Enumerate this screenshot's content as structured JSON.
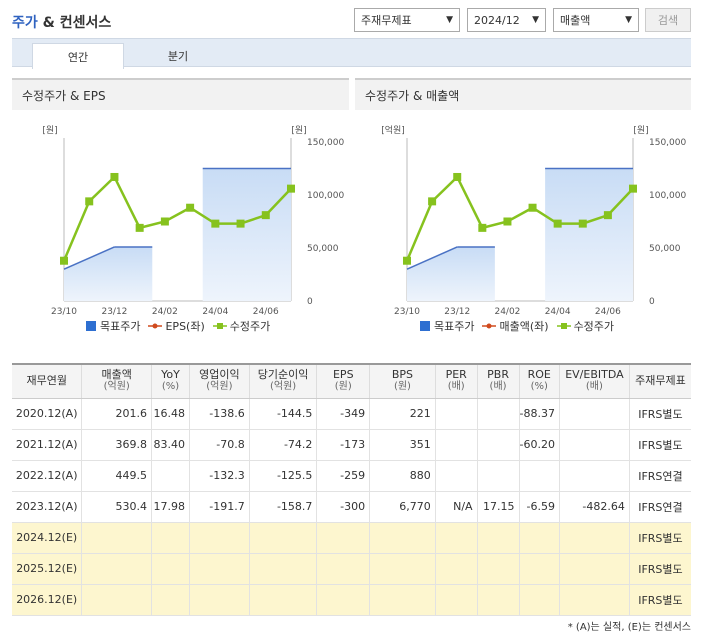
{
  "header": {
    "title_part1": "주가",
    "title_part2": "& 컨센서스"
  },
  "selectors": {
    "report_type": "주재무제표",
    "period": "2024/12",
    "metric": "매출액",
    "search_label": "검색"
  },
  "tabs": [
    {
      "label": "연간"
    },
    {
      "label": "분기"
    }
  ],
  "charts": [
    {
      "title": "수정주가 & EPS",
      "left_unit": "[원]",
      "right_unit": "[원]",
      "legend": [
        "목표주가",
        "EPS(좌)",
        "수정주가"
      ]
    },
    {
      "title": "수정주가 & 매출액",
      "left_unit": "[억원]",
      "right_unit": "[원]",
      "legend": [
        "목표주가",
        "매출액(좌)",
        "수정주가"
      ]
    }
  ],
  "chart_data": [
    {
      "type": "line",
      "title": "수정주가 & EPS",
      "x": [
        "23/10",
        "23/11",
        "23/12",
        "24/01",
        "24/02",
        "24/03",
        "24/04",
        "24/05",
        "24/06",
        "24/07"
      ],
      "x_tick_labels": [
        "23/10",
        "23/12",
        "24/02",
        "24/04",
        "24/06"
      ],
      "y_right_ticks": [
        "150,000",
        "100,000",
        "50,000",
        "0"
      ],
      "y_right_range": [
        0,
        150000
      ],
      "series": [
        {
          "name": "수정주가",
          "color": "#86c21e",
          "values": [
            38000,
            94000,
            117000,
            69000,
            75000,
            88000,
            73000,
            73000,
            81000,
            106000
          ]
        },
        {
          "name": "목표주가",
          "color": "#2e6fd1",
          "values": [
            30000,
            null,
            51000,
            51000,
            null,
            125000,
            null,
            null,
            null,
            125000
          ],
          "segments": [
            [
              0,
              30000,
              2,
              51000
            ],
            [
              2,
              51000,
              3.5,
              51000
            ],
            [
              5.5,
              125000,
              9,
              125000
            ]
          ]
        }
      ]
    },
    {
      "type": "line",
      "title": "수정주가 & 매출액",
      "x": [
        "23/10",
        "23/11",
        "23/12",
        "24/01",
        "24/02",
        "24/03",
        "24/04",
        "24/05",
        "24/06",
        "24/07"
      ],
      "x_tick_labels": [
        "23/10",
        "23/12",
        "24/02",
        "24/04",
        "24/06"
      ],
      "y_right_ticks": [
        "150,000",
        "100,000",
        "50,000",
        "0"
      ],
      "y_right_range": [
        0,
        150000
      ],
      "series": [
        {
          "name": "수정주가",
          "color": "#86c21e",
          "values": [
            38000,
            94000,
            117000,
            69000,
            75000,
            88000,
            73000,
            73000,
            81000,
            106000
          ]
        },
        {
          "name": "목표주가",
          "color": "#2e6fd1",
          "values": [
            30000,
            null,
            51000,
            51000,
            null,
            125000,
            null,
            null,
            null,
            125000
          ],
          "segments": [
            [
              0,
              30000,
              2,
              51000
            ],
            [
              2,
              51000,
              3.5,
              51000
            ],
            [
              5.5,
              125000,
              9,
              125000
            ]
          ]
        }
      ]
    }
  ],
  "table": {
    "headers": [
      {
        "main": "재무연월",
        "sub": ""
      },
      {
        "main": "매출액",
        "sub": "(억원)"
      },
      {
        "main": "YoY",
        "sub": "(%)"
      },
      {
        "main": "영업이익",
        "sub": "(억원)"
      },
      {
        "main": "당기순이익",
        "sub": "(억원)"
      },
      {
        "main": "EPS",
        "sub": "(원)"
      },
      {
        "main": "BPS",
        "sub": "(원)"
      },
      {
        "main": "PER",
        "sub": "(배)"
      },
      {
        "main": "PBR",
        "sub": "(배)"
      },
      {
        "main": "ROE",
        "sub": "(%)"
      },
      {
        "main": "EV/EBITDA",
        "sub": "(배)"
      },
      {
        "main": "주재무제표",
        "sub": ""
      }
    ],
    "rows": [
      [
        "2020.12(A)",
        "201.6",
        "16.48",
        "-138.6",
        "-144.5",
        "-349",
        "221",
        "",
        "",
        "-88.37",
        "",
        "IFRS별도"
      ],
      [
        "2021.12(A)",
        "369.8",
        "83.40",
        "-70.8",
        "-74.2",
        "-173",
        "351",
        "",
        "",
        "-60.20",
        "",
        "IFRS별도"
      ],
      [
        "2022.12(A)",
        "449.5",
        "",
        "-132.3",
        "-125.5",
        "-259",
        "880",
        "",
        "",
        "",
        "",
        "IFRS연결"
      ],
      [
        "2023.12(A)",
        "530.4",
        "17.98",
        "-191.7",
        "-158.7",
        "-300",
        "6,770",
        "N/A",
        "17.15",
        "-6.59",
        "-482.64",
        "IFRS연결"
      ],
      [
        "2024.12(E)",
        "",
        "",
        "",
        "",
        "",
        "",
        "",
        "",
        "",
        "",
        "IFRS별도"
      ],
      [
        "2025.12(E)",
        "",
        "",
        "",
        "",
        "",
        "",
        "",
        "",
        "",
        "",
        "IFRS별도"
      ],
      [
        "2026.12(E)",
        "",
        "",
        "",
        "",
        "",
        "",
        "",
        "",
        "",
        "",
        "IFRS별도"
      ]
    ],
    "estimate_rows_from": 4
  },
  "footnote": "* (A)는 실적, (E)는 컨센서스"
}
